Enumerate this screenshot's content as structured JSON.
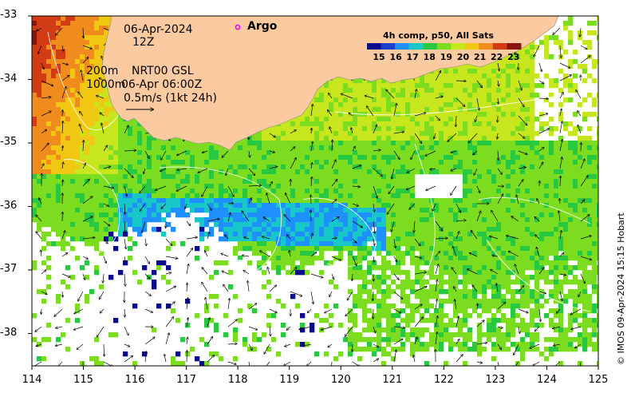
{
  "map": {
    "date": "06-Apr-2024",
    "hour": "12Z",
    "depth_200m": "200m",
    "depth_1000m": "1000m",
    "product_line": "NRT00 GSL",
    "product_time": "06-Apr 06:00Z",
    "scale_label": "0.5m/s (1kt 24h)",
    "argo_label": "Argo",
    "credit": "© IMOS 09-Apr-2024 15:15 Hobart",
    "x_ticks": [
      "114",
      "115",
      "116",
      "117",
      "118",
      "119",
      "120",
      "121",
      "122",
      "123",
      "124",
      "125"
    ],
    "y_ticks": [
      "-33",
      "-34",
      "-35",
      "-36",
      "-37",
      "-38"
    ],
    "colorbar": {
      "title": "4h comp, p50, All Sats",
      "ticks": [
        "15",
        "16",
        "17",
        "18",
        "19",
        "20",
        "21",
        "22",
        "23"
      ],
      "colors": [
        "#0a0a8c",
        "#1c3fcc",
        "#1e90ff",
        "#18c8c8",
        "#28c840",
        "#7cdc20",
        "#c8e61e",
        "#f0c814",
        "#f08c1e",
        "#d23c14",
        "#8c1410"
      ]
    }
  }
}
